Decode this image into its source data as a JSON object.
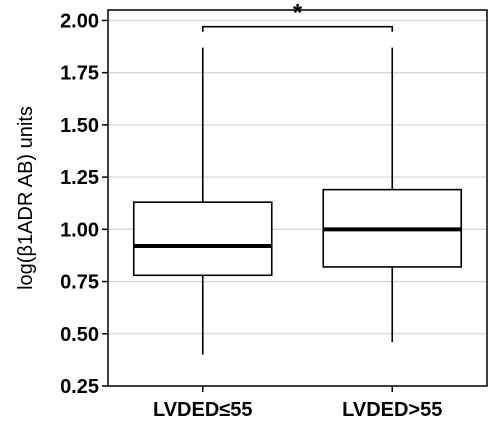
{
  "chart_data": {
    "type": "boxplot",
    "ylabel": "log(β1ADR AB) units",
    "xlabel": "",
    "ylim": [
      0.25,
      2.05
    ],
    "yticks": [
      "0.25",
      "0.50",
      "0.75",
      "1.00",
      "1.25",
      "1.50",
      "1.75",
      "2.00"
    ],
    "ytick_values": [
      0.25,
      0.5,
      0.75,
      1.0,
      1.25,
      1.5,
      1.75,
      2.0
    ],
    "grid": true,
    "categories": [
      "LVDED≤55",
      "LVDED>55"
    ],
    "boxes": [
      {
        "category": "LVDED≤55",
        "whisker_low": 0.4,
        "q1": 0.78,
        "median": 0.92,
        "q3": 1.13,
        "whisker_high": 1.87
      },
      {
        "category": "LVDED>55",
        "whisker_low": 0.46,
        "q1": 0.82,
        "median": 1.0,
        "q3": 1.19,
        "whisker_high": 1.87
      }
    ],
    "significance": {
      "label": "*",
      "between": [
        "LVDED≤55",
        "LVDED>55"
      ],
      "y": 1.97
    }
  }
}
